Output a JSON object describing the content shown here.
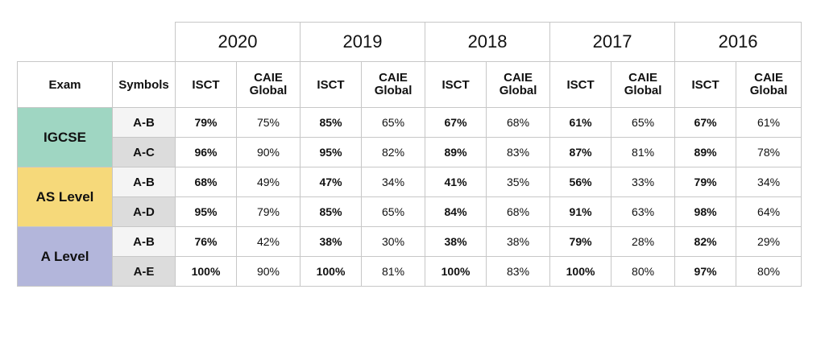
{
  "header": {
    "years": [
      "2020",
      "2019",
      "2018",
      "2017",
      "2016"
    ],
    "exam_label": "Exam",
    "symbols_label": "Symbols",
    "isct_label": "ISCT",
    "caie_label_line1": "CAIE",
    "caie_label_line2": "Global"
  },
  "groups": [
    {
      "exam": "IGCSE",
      "color": "#9fd6c2",
      "rows": [
        {
          "symbol": "A-B",
          "values": [
            "79%",
            "75%",
            "85%",
            "65%",
            "67%",
            "68%",
            "61%",
            "65%",
            "67%",
            "61%"
          ]
        },
        {
          "symbol": "A-C",
          "values": [
            "96%",
            "90%",
            "95%",
            "82%",
            "89%",
            "83%",
            "87%",
            "81%",
            "89%",
            "78%"
          ]
        }
      ]
    },
    {
      "exam": "AS Level",
      "color": "#f6d97a",
      "rows": [
        {
          "symbol": "A-B",
          "values": [
            "68%",
            "49%",
            "47%",
            "34%",
            "41%",
            "35%",
            "56%",
            "33%",
            "79%",
            "34%"
          ]
        },
        {
          "symbol": "A-D",
          "values": [
            "95%",
            "79%",
            "85%",
            "65%",
            "84%",
            "68%",
            "91%",
            "63%",
            "98%",
            "64%"
          ]
        }
      ]
    },
    {
      "exam": "A Level",
      "color": "#b3b6db",
      "rows": [
        {
          "symbol": "A-B",
          "values": [
            "76%",
            "42%",
            "38%",
            "30%",
            "38%",
            "38%",
            "79%",
            "28%",
            "82%",
            "29%"
          ]
        },
        {
          "symbol": "A-E",
          "values": [
            "100%",
            "90%",
            "100%",
            "81%",
            "100%",
            "83%",
            "100%",
            "80%",
            "97%",
            "80%"
          ]
        }
      ]
    }
  ]
}
